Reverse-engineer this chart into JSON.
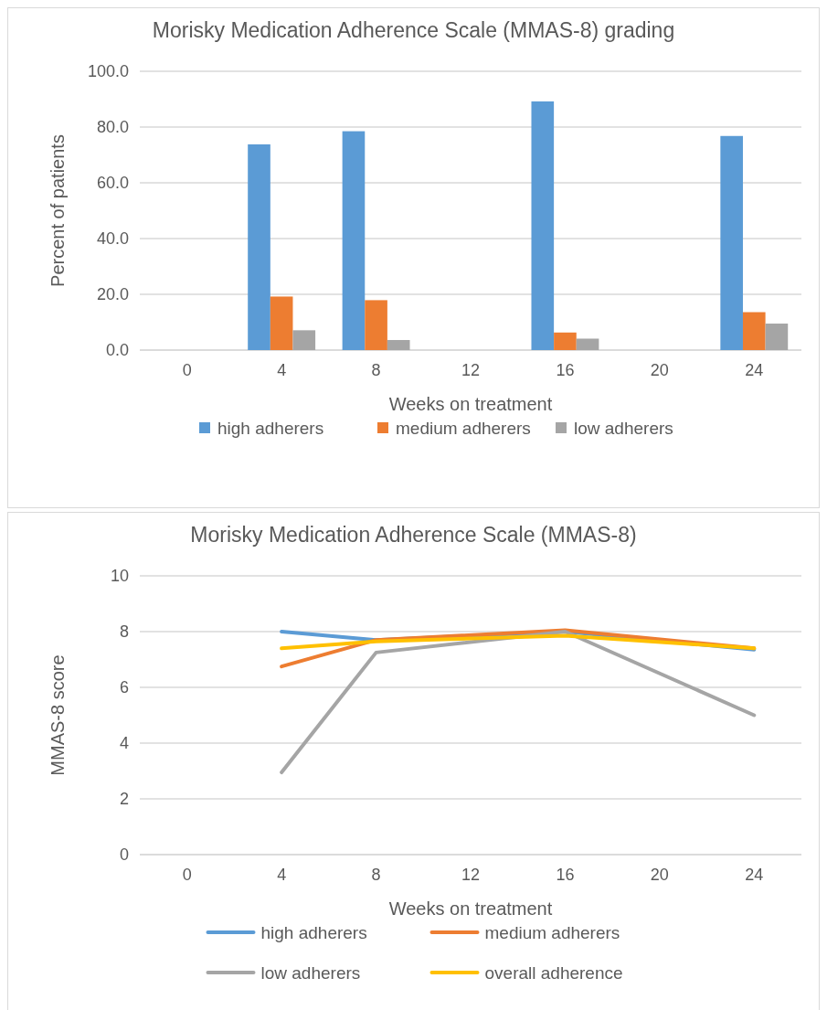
{
  "chart_data": [
    {
      "type": "bar",
      "title": "Morisky Medication Adherence Scale (MMAS-8) grading",
      "xlabel": "Weeks on treatment",
      "ylabel": "Percent of patients",
      "categories": [
        "0",
        "4",
        "8",
        "12",
        "16",
        "20",
        "24"
      ],
      "ylim": [
        0,
        100
      ],
      "yticks": [
        {
          "value": 0,
          "label": "0.0"
        },
        {
          "value": 20,
          "label": "20.0"
        },
        {
          "value": 40,
          "label": "40.0"
        },
        {
          "value": 60,
          "label": "60.0"
        },
        {
          "value": 80,
          "label": "80.0"
        },
        {
          "value": 100,
          "label": "100.0"
        }
      ],
      "grid": "y",
      "legend": "bottom",
      "series": [
        {
          "name": "high adherers",
          "color": "#5b9bd5",
          "values": [
            null,
            73.8,
            78.5,
            null,
            89.2,
            null,
            76.8
          ]
        },
        {
          "name": "medium adherers",
          "color": "#ed7d31",
          "values": [
            null,
            19.2,
            17.9,
            null,
            6.3,
            null,
            13.6
          ]
        },
        {
          "name": "low adherers",
          "color": "#a5a5a5",
          "values": [
            null,
            7.1,
            3.6,
            null,
            4.1,
            null,
            9.5
          ]
        }
      ]
    },
    {
      "type": "line",
      "title": "Morisky Medication Adherence Scale (MMAS-8)",
      "xlabel": "Weeks on treatment",
      "ylabel": "MMAS-8 score",
      "categories": [
        "0",
        "4",
        "8",
        "12",
        "16",
        "20",
        "24"
      ],
      "ylim": [
        0,
        10
      ],
      "yticks": [
        0,
        2,
        4,
        6,
        8,
        10
      ],
      "grid": "y",
      "legend": "bottom",
      "marker": "none",
      "line_style": "solid",
      "series": [
        {
          "name": "high adherers",
          "color": "#5b9bd5",
          "values": [
            null,
            8.0,
            7.7,
            null,
            8.0,
            null,
            7.35
          ]
        },
        {
          "name": "medium adherers",
          "color": "#ed7d31",
          "values": [
            null,
            6.75,
            7.7,
            null,
            8.05,
            null,
            7.4
          ]
        },
        {
          "name": "low adherers",
          "color": "#a5a5a5",
          "values": [
            null,
            2.95,
            7.25,
            null,
            8.0,
            null,
            5.0
          ]
        },
        {
          "name": "overall adherence",
          "color": "#ffc000",
          "values": [
            null,
            7.4,
            7.65,
            null,
            7.85,
            null,
            7.4
          ]
        }
      ]
    }
  ]
}
